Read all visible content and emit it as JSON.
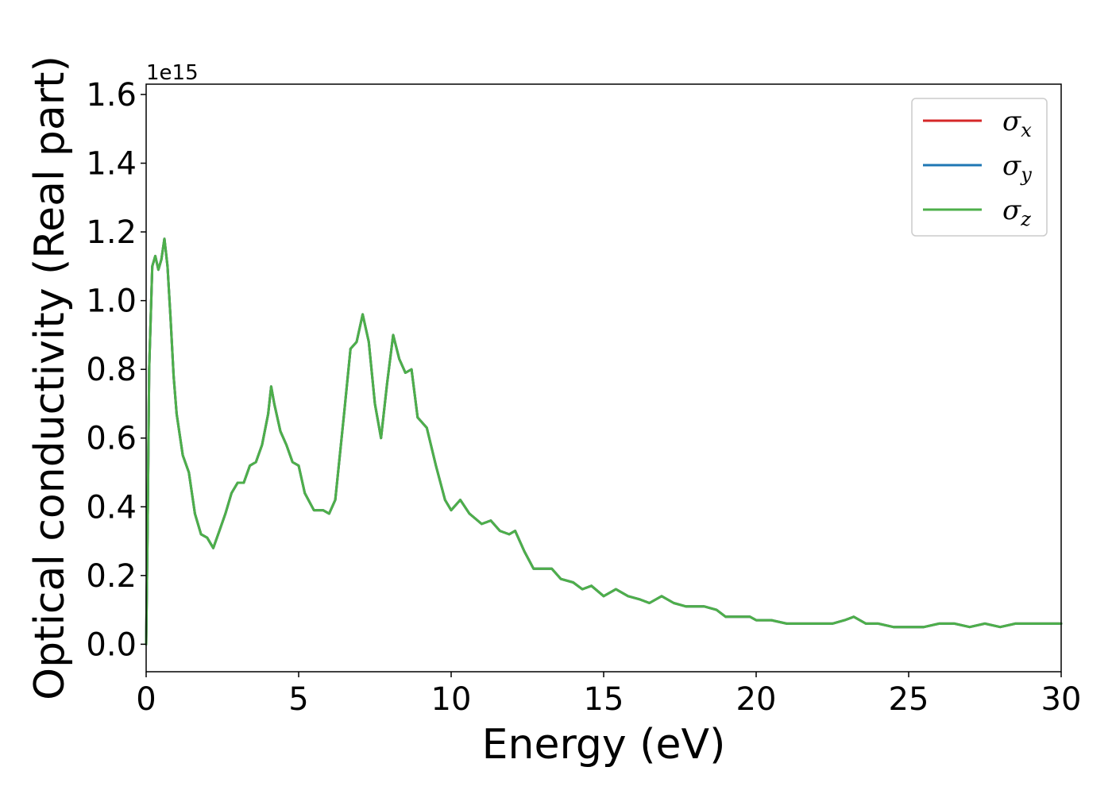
{
  "chart_data": {
    "type": "line",
    "title": "",
    "xlabel": "Energy (eV)",
    "ylabel": "Optical conductivity (Real part)",
    "y_offset_label": "1e15",
    "xlim": [
      0,
      30
    ],
    "ylim": [
      -0.08,
      1.63
    ],
    "xticks": [
      0,
      5,
      10,
      15,
      20,
      25,
      30
    ],
    "xtick_labels": [
      "0",
      "5",
      "10",
      "15",
      "20",
      "25",
      "30"
    ],
    "yticks": [
      0.0,
      0.2,
      0.4,
      0.6,
      0.8,
      1.0,
      1.2,
      1.4,
      1.6
    ],
    "ytick_labels": [
      "0.0",
      "0.2",
      "0.4",
      "0.6",
      "0.8",
      "1.0",
      "1.2",
      "1.4",
      "1.6"
    ],
    "grid": false,
    "legend_position": "top-right",
    "series": [
      {
        "name": "σx",
        "legend_main": "σ",
        "legend_sub": "x",
        "color": "#d62728"
      },
      {
        "name": "σy",
        "legend_main": "σ",
        "legend_sub": "y",
        "color": "#1f77b4"
      },
      {
        "name": "σz",
        "legend_main": "σ",
        "legend_sub": "z",
        "color": "#4daf4a"
      }
    ],
    "x": [
      0,
      0.05,
      0.1,
      0.2,
      0.3,
      0.4,
      0.5,
      0.6,
      0.7,
      0.8,
      0.9,
      1.0,
      1.2,
      1.4,
      1.6,
      1.8,
      2.0,
      2.2,
      2.4,
      2.6,
      2.8,
      3.0,
      3.2,
      3.4,
      3.6,
      3.8,
      4.0,
      4.1,
      4.2,
      4.4,
      4.6,
      4.8,
      5.0,
      5.2,
      5.5,
      5.8,
      6.0,
      6.2,
      6.5,
      6.7,
      6.9,
      7.1,
      7.3,
      7.5,
      7.7,
      7.9,
      8.1,
      8.3,
      8.5,
      8.7,
      8.9,
      9.2,
      9.5,
      9.8,
      10.0,
      10.3,
      10.6,
      11.0,
      11.3,
      11.6,
      11.9,
      12.1,
      12.4,
      12.7,
      13.0,
      13.3,
      13.6,
      14.0,
      14.3,
      14.6,
      15.0,
      15.4,
      15.8,
      16.2,
      16.5,
      16.9,
      17.3,
      17.7,
      18.0,
      18.3,
      18.7,
      19.0,
      19.4,
      19.8,
      20.0,
      20.5,
      21.0,
      21.5,
      22.0,
      22.5,
      22.9,
      23.2,
      23.6,
      24.0,
      24.5,
      25.0,
      25.5,
      26.0,
      26.5,
      27.0,
      27.5,
      28.0,
      28.5,
      29.0,
      29.5,
      30.0
    ],
    "y": [
      0.0,
      0.35,
      0.8,
      1.1,
      1.13,
      1.09,
      1.12,
      1.18,
      1.1,
      0.95,
      0.78,
      0.67,
      0.55,
      0.5,
      0.38,
      0.32,
      0.31,
      0.28,
      0.33,
      0.38,
      0.44,
      0.47,
      0.47,
      0.52,
      0.53,
      0.58,
      0.67,
      0.75,
      0.7,
      0.62,
      0.58,
      0.53,
      0.52,
      0.44,
      0.39,
      0.39,
      0.38,
      0.42,
      0.68,
      0.86,
      0.88,
      0.96,
      0.88,
      0.7,
      0.6,
      0.76,
      0.9,
      0.83,
      0.79,
      0.8,
      0.66,
      0.63,
      0.52,
      0.42,
      0.39,
      0.42,
      0.38,
      0.35,
      0.36,
      0.33,
      0.32,
      0.33,
      0.27,
      0.22,
      0.22,
      0.22,
      0.19,
      0.18,
      0.16,
      0.17,
      0.14,
      0.16,
      0.14,
      0.13,
      0.12,
      0.14,
      0.12,
      0.11,
      0.11,
      0.11,
      0.1,
      0.08,
      0.08,
      0.08,
      0.07,
      0.07,
      0.06,
      0.06,
      0.06,
      0.06,
      0.07,
      0.08,
      0.06,
      0.06,
      0.05,
      0.05,
      0.05,
      0.06,
      0.06,
      0.05,
      0.06,
      0.05,
      0.06,
      0.06,
      0.06,
      0.06
    ]
  }
}
